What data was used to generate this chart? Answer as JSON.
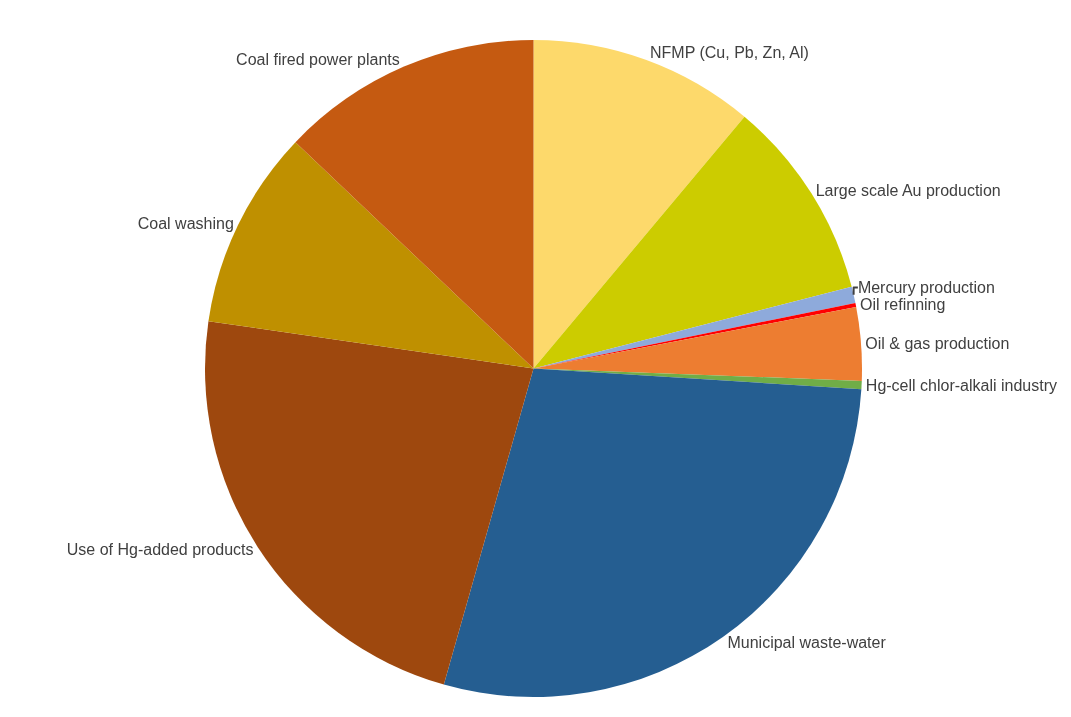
{
  "chart_data": {
    "type": "pie",
    "categories": [
      "NFMP (Cu, Pb, Zn, Al)",
      "Large scale Au production",
      "Mercury production",
      "Oil refinning",
      "Oil & gas production",
      "Hg-cell chlor-alkali industry",
      "Municipal waste-water",
      "Use of Hg-added products",
      "Coal washing",
      "Coal fired power plants"
    ],
    "values": [
      11.1,
      9.9,
      0.8,
      0.2,
      3.6,
      0.4,
      28.4,
      22.9,
      9.8,
      12.9
    ],
    "colors": [
      "#fdd96b",
      "#cccc00",
      "#8eaadb",
      "#ff0000",
      "#ed7d31",
      "#70ad47",
      "#255e91",
      "#9e480e",
      "#bf9000",
      "#c55a11"
    ],
    "legend": false
  }
}
